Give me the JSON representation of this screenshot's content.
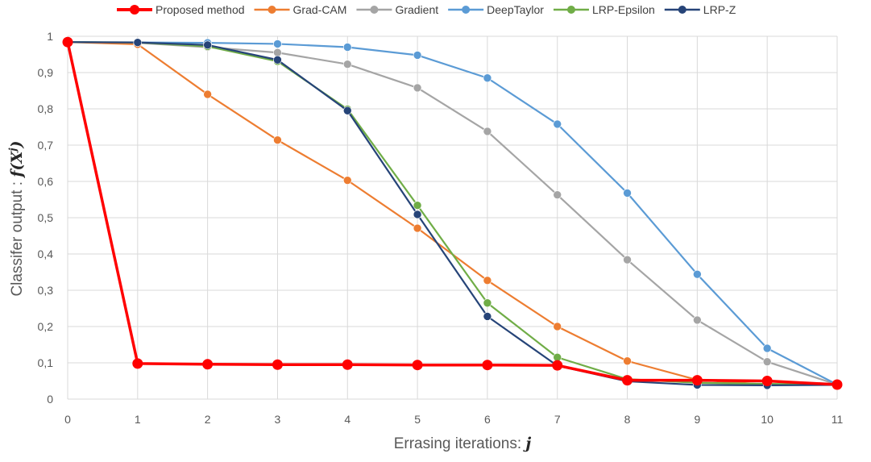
{
  "chart_data": {
    "type": "line",
    "xlabel": "Errasing iterations: ",
    "xlabel_var": "j",
    "ylabel": "Classifer output : ",
    "ylabel_var": "f(X",
    "ylabel_sup": "j",
    "ylabel_close": ")",
    "xlim": [
      0,
      11
    ],
    "ylim": [
      0,
      1
    ],
    "x_ticks": [
      0,
      1,
      2,
      3,
      4,
      5,
      6,
      7,
      8,
      9,
      10,
      11
    ],
    "x_tick_labels": [
      "0",
      "1",
      "2",
      "3",
      "4",
      "5",
      "6",
      "7",
      "8",
      "9",
      "10",
      "11"
    ],
    "y_ticks": [
      0,
      0.1,
      0.2,
      0.3,
      0.4,
      0.5,
      0.6,
      0.7,
      0.8,
      0.9,
      1
    ],
    "y_tick_labels": [
      "0",
      "0,1",
      "0,2",
      "0,3",
      "0,4",
      "0,5",
      "0,6",
      "0,7",
      "0,8",
      "0,9",
      "1"
    ],
    "grid": true,
    "legend_position": "top",
    "x": [
      0,
      1,
      2,
      3,
      4,
      5,
      6,
      7,
      8,
      9,
      10,
      11
    ],
    "series": [
      {
        "name": "Gradient",
        "color": "#a5a5a5",
        "values": [
          0.984,
          0.982,
          0.97,
          0.955,
          0.923,
          0.858,
          0.738,
          0.563,
          0.384,
          0.218,
          0.103,
          0.04
        ]
      },
      {
        "name": "DeepTaylor",
        "color": "#5b9bd5",
        "values": [
          0.984,
          0.983,
          0.982,
          0.979,
          0.97,
          0.948,
          0.885,
          0.758,
          0.568,
          0.344,
          0.14,
          0.04
        ]
      },
      {
        "name": "Grad-CAM",
        "color": "#ed7d31",
        "values": [
          0.984,
          0.978,
          0.84,
          0.714,
          0.603,
          0.471,
          0.327,
          0.2,
          0.105,
          0.053,
          0.04,
          0.04
        ]
      },
      {
        "name": "LRP-Epsilon",
        "color": "#70ad47",
        "values": [
          0.984,
          0.983,
          0.972,
          0.931,
          0.799,
          0.534,
          0.265,
          0.115,
          0.055,
          0.045,
          0.042,
          0.04
        ]
      },
      {
        "name": "LRP-Z",
        "color": "#264478",
        "values": [
          0.984,
          0.983,
          0.976,
          0.935,
          0.795,
          0.509,
          0.228,
          0.092,
          0.049,
          0.039,
          0.038,
          0.039
        ]
      },
      {
        "name": "Proposed method",
        "color": "#ff0000",
        "values": [
          0.984,
          0.098,
          0.096,
          0.095,
          0.095,
          0.094,
          0.094,
          0.093,
          0.052,
          0.052,
          0.05,
          0.04
        ]
      }
    ],
    "legend_order": [
      "Proposed method",
      "Grad-CAM",
      "Gradient",
      "DeepTaylor",
      "LRP-Epsilon",
      "LRP-Z"
    ]
  }
}
